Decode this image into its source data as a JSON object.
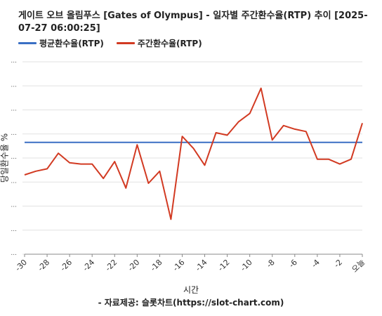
{
  "chart_data": {
    "type": "line",
    "title": "게이트 오브 올림푸스 [Gates of Olympus] - 일자별 주간환수율(RTP) 추이 [2025-07-27 06:00:25]",
    "xlabel": "시간",
    "ylabel": "당일환수율 %",
    "credit": "- 자료제공: 슬롯차트(https://slot-chart.com)",
    "x": [
      -30,
      -29,
      -28,
      -27,
      -26,
      -25,
      -24,
      -23,
      -22,
      -21,
      -20,
      -19,
      -18,
      -17,
      -16,
      -15,
      -14,
      -13,
      -12,
      -11,
      -10,
      -9,
      -8,
      -7,
      -6,
      -5,
      -4,
      -3,
      -2,
      -1,
      0
    ],
    "x_tick_labels": [
      "-30",
      "-28",
      "-26",
      "-24",
      "-22",
      "-20",
      "-18",
      "-16",
      "-14",
      "-12",
      "-10",
      "-8",
      "-6",
      "-4",
      "-2",
      "오늘"
    ],
    "xlim": [
      -30,
      0
    ],
    "ylim": [
      0,
      8
    ],
    "y_ticks": [
      0,
      1,
      2,
      3,
      4,
      5,
      6,
      7,
      8
    ],
    "y_tick_labels": [
      "...",
      "...",
      "...",
      "...",
      "...",
      "...",
      "...",
      "...",
      "..."
    ],
    "grid": true,
    "legend_position": "top-left",
    "series": [
      {
        "name": "평균환수율(RTP)",
        "color": "#3a6fc4",
        "values": [
          4.65,
          4.65,
          4.65,
          4.65,
          4.65,
          4.65,
          4.65,
          4.65,
          4.65,
          4.65,
          4.65,
          4.65,
          4.65,
          4.65,
          4.65,
          4.65,
          4.65,
          4.65,
          4.65,
          4.65,
          4.65,
          4.65,
          4.65,
          4.65,
          4.65,
          4.65,
          4.65,
          4.65,
          4.65,
          4.65,
          4.65
        ]
      },
      {
        "name": "주간환수율(RTP)",
        "color": "#d23a22",
        "values": [
          3.3,
          3.45,
          3.55,
          4.2,
          3.8,
          3.75,
          3.75,
          3.15,
          3.85,
          2.75,
          4.55,
          2.95,
          3.45,
          1.45,
          4.9,
          4.4,
          3.7,
          5.05,
          4.95,
          5.5,
          5.85,
          6.9,
          4.75,
          5.35,
          5.2,
          5.1,
          3.95,
          3.95,
          3.75,
          3.95,
          5.45
        ]
      }
    ]
  }
}
